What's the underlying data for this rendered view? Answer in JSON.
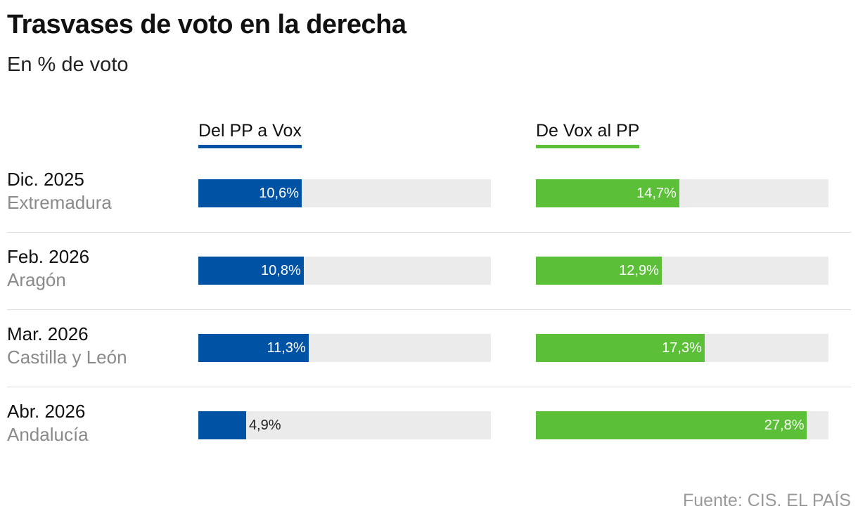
{
  "title": "Trasvases de voto en la derecha",
  "subtitle": "En % de voto",
  "source": "Fuente: CIS. EL PAÍS",
  "colors": {
    "pp_to_vox": "#0052a5",
    "vox_to_pp": "#5cbf38",
    "track": "#ebebeb"
  },
  "chart_data": {
    "type": "bar",
    "orientation": "horizontal",
    "title": "Trasvases de voto en la derecha",
    "subtitle": "En % de voto",
    "xlim": [
      0,
      30
    ],
    "categories": [
      {
        "date": "Dic. 2025",
        "region": "Extremadura"
      },
      {
        "date": "Feb. 2026",
        "region": "Aragón"
      },
      {
        "date": "Mar. 2026",
        "region": "Castilla y León"
      },
      {
        "date": "Abr. 2026",
        "region": "Andalucía"
      }
    ],
    "series": [
      {
        "name": "Del PP a Vox",
        "values": [
          10.6,
          10.8,
          11.3,
          4.9
        ],
        "labels": [
          "10,6%",
          "10,8%",
          "11,3%",
          "4,9%"
        ]
      },
      {
        "name": "De Vox al PP",
        "values": [
          14.7,
          12.9,
          17.3,
          27.8
        ],
        "labels": [
          "14,7%",
          "12,9%",
          "17,3%",
          "27,8%"
        ]
      }
    ]
  }
}
